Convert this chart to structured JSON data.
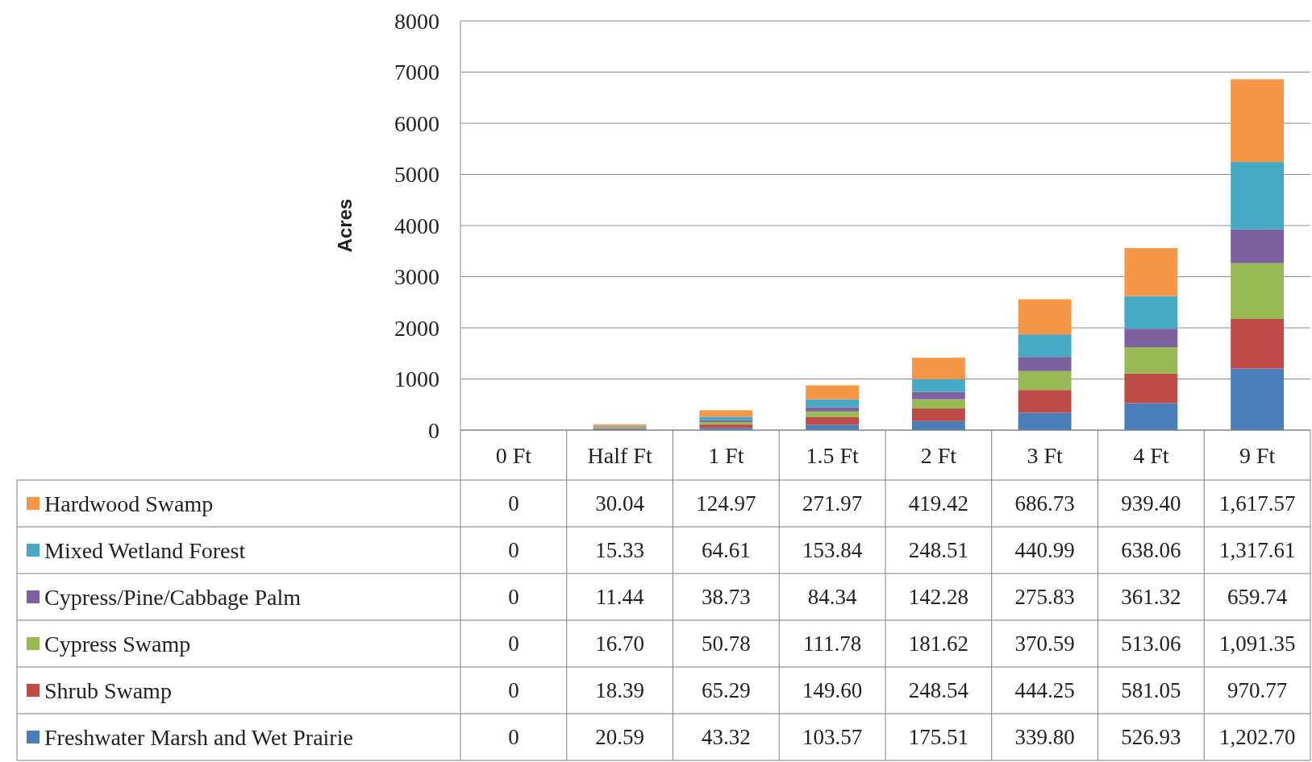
{
  "chart_data": {
    "type": "bar",
    "stacked": true,
    "ylabel": "Acres",
    "categories": [
      "0 Ft",
      "Half Ft",
      "1 Ft",
      "1.5 Ft",
      "2 Ft",
      "3 Ft",
      "4 Ft",
      "9 Ft"
    ],
    "ylim": [
      0,
      8000
    ],
    "yticks": [
      0,
      1000,
      2000,
      3000,
      4000,
      5000,
      6000,
      7000,
      8000
    ],
    "grid": "y",
    "legend": "bottom",
    "series": [
      {
        "name": "Freshwater Marsh and Wet Prairie",
        "color": "#4a7ebb",
        "values": [
          0,
          20.59,
          43.32,
          103.57,
          175.51,
          339.8,
          526.93,
          1202.7
        ],
        "value_labels": [
          "0",
          "20.59",
          "43.32",
          "103.57",
          "175.51",
          "339.80",
          "526.93",
          "1,202.70"
        ]
      },
      {
        "name": "Shrub Swamp",
        "color": "#be4b48",
        "values": [
          0,
          18.39,
          65.29,
          149.6,
          248.54,
          444.25,
          581.05,
          970.77
        ],
        "value_labels": [
          "0",
          "18.39",
          "65.29",
          "149.60",
          "248.54",
          "444.25",
          "581.05",
          "970.77"
        ]
      },
      {
        "name": "Cypress Swamp",
        "color": "#98b954",
        "values": [
          0,
          16.7,
          50.78,
          111.78,
          181.62,
          370.59,
          513.06,
          1091.35
        ],
        "value_labels": [
          "0",
          "16.70",
          "50.78",
          "111.78",
          "181.62",
          "370.59",
          "513.06",
          "1,091.35"
        ]
      },
      {
        "name": "Cypress/Pine/Cabbage Palm",
        "color": "#7d60a0",
        "values": [
          0,
          11.44,
          38.73,
          84.34,
          142.28,
          275.83,
          361.32,
          659.74
        ],
        "value_labels": [
          "0",
          "11.44",
          "38.73",
          "84.34",
          "142.28",
          "275.83",
          "361.32",
          "659.74"
        ]
      },
      {
        "name": "Mixed Wetland Forest",
        "color": "#46aac5",
        "values": [
          0,
          15.33,
          64.61,
          153.84,
          248.51,
          440.99,
          638.06,
          1317.61
        ],
        "value_labels": [
          "0",
          "15.33",
          "64.61",
          "153.84",
          "248.51",
          "440.99",
          "638.06",
          "1,317.61"
        ]
      },
      {
        "name": "Hardwood Swamp",
        "color": "#f79646",
        "values": [
          0,
          30.04,
          124.97,
          271.97,
          419.42,
          686.73,
          939.4,
          1617.57
        ],
        "value_labels": [
          "0",
          "30.04",
          "124.97",
          "271.97",
          "419.42",
          "686.73",
          "939.40",
          "1,617.57"
        ]
      }
    ]
  }
}
